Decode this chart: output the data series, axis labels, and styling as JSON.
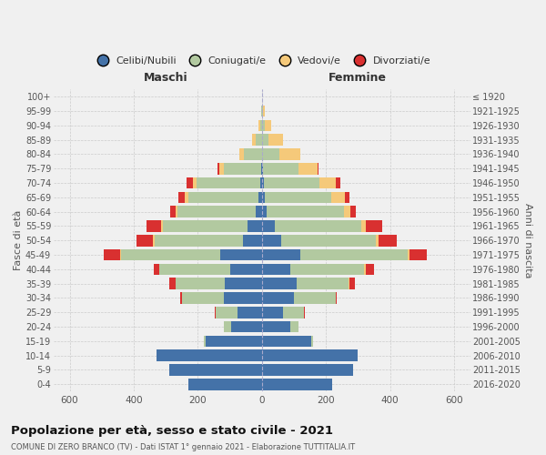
{
  "age_groups": [
    "0-4",
    "5-9",
    "10-14",
    "15-19",
    "20-24",
    "25-29",
    "30-34",
    "35-39",
    "40-44",
    "45-49",
    "50-54",
    "55-59",
    "60-64",
    "65-69",
    "70-74",
    "75-79",
    "80-84",
    "85-89",
    "90-94",
    "95-99",
    "100+"
  ],
  "birth_years": [
    "2016-2020",
    "2011-2015",
    "2006-2010",
    "2001-2005",
    "1996-2000",
    "1991-1995",
    "1986-1990",
    "1981-1985",
    "1976-1980",
    "1971-1975",
    "1966-1970",
    "1961-1965",
    "1956-1960",
    "1951-1955",
    "1946-1950",
    "1941-1945",
    "1936-1940",
    "1931-1935",
    "1926-1930",
    "1921-1925",
    "≤ 1920"
  ],
  "maschi": {
    "celibi": [
      230,
      290,
      330,
      175,
      95,
      75,
      120,
      115,
      100,
      130,
      60,
      45,
      18,
      10,
      5,
      3,
      0,
      0,
      0,
      0,
      0
    ],
    "coniugati": [
      0,
      0,
      0,
      5,
      25,
      70,
      130,
      155,
      220,
      310,
      275,
      265,
      245,
      220,
      200,
      115,
      55,
      20,
      6,
      3,
      0
    ],
    "vedovi": [
      0,
      0,
      0,
      0,
      0,
      0,
      0,
      0,
      0,
      3,
      5,
      5,
      5,
      10,
      10,
      15,
      15,
      10,
      5,
      0,
      0
    ],
    "divorziati": [
      0,
      0,
      0,
      0,
      0,
      3,
      5,
      18,
      18,
      50,
      50,
      45,
      18,
      20,
      20,
      5,
      0,
      0,
      0,
      0,
      0
    ]
  },
  "femmine": {
    "nubili": [
      220,
      285,
      300,
      155,
      90,
      65,
      100,
      110,
      90,
      120,
      60,
      40,
      15,
      8,
      5,
      3,
      0,
      0,
      0,
      0,
      0
    ],
    "coniugate": [
      0,
      0,
      0,
      5,
      25,
      65,
      130,
      160,
      230,
      335,
      295,
      270,
      240,
      210,
      175,
      110,
      55,
      20,
      8,
      3,
      0
    ],
    "vedove": [
      0,
      0,
      0,
      0,
      0,
      0,
      0,
      3,
      5,
      5,
      10,
      15,
      20,
      40,
      50,
      60,
      65,
      45,
      20,
      5,
      0
    ],
    "divorziate": [
      0,
      0,
      0,
      0,
      0,
      3,
      5,
      18,
      25,
      55,
      55,
      50,
      18,
      15,
      15,
      5,
      0,
      0,
      0,
      0,
      0
    ]
  },
  "colors": {
    "celibi": "#4472a8",
    "coniugati": "#b2c9a0",
    "vedovi": "#f5c97a",
    "divorziati": "#d93030"
  },
  "xlim": 650,
  "title": "Popolazione per età, sesso e stato civile - 2021",
  "subtitle": "COMUNE DI ZERO BRANCO (TV) - Dati ISTAT 1° gennaio 2021 - Elaborazione TUTTITALIA.IT",
  "ylabel": "Fasce di età",
  "ylabel_right": "Anni di nascita",
  "xlabel_maschi": "Maschi",
  "xlabel_femmine": "Femmine",
  "legend_labels": [
    "Celibi/Nubili",
    "Coniugati/e",
    "Vedovi/e",
    "Divorziati/e"
  ],
  "bg_color": "#f0f0f0"
}
